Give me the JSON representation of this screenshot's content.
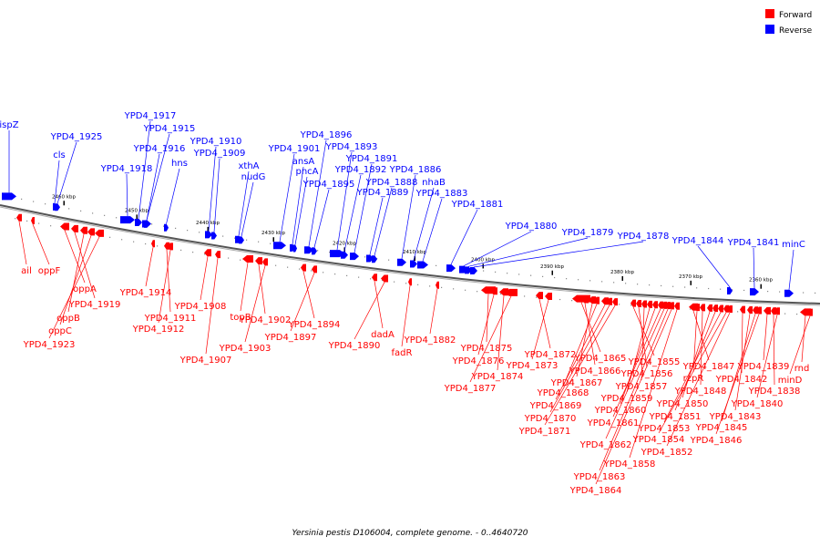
{
  "legend": {
    "forward_label": "Forward",
    "reverse_label": "Reverse",
    "forward_color": "#ff0000",
    "reverse_color": "#0000ff"
  },
  "caption": "Yersinia pestis D106004, complete genome. - 0..4640720",
  "axis_labels": [
    "2460 kbp",
    "2450 kbp",
    "2440 kbp",
    "2430 kbp",
    "2420 kbp",
    "2410 kbp",
    "2400 kbp",
    "2390 kbp",
    "2380 kbp",
    "2370 kbp",
    "2360 kbp"
  ],
  "reverse_genes": [
    "ispZ",
    "YPD4_1925",
    "cls",
    "YPD4_1918",
    "YPD4_1917",
    "YPD4_1915",
    "YPD4_1916",
    "hns",
    "YPD4_1910",
    "YPD4_1909",
    "xthA",
    "nudG",
    "YPD4_1901",
    "ansA",
    "pncA",
    "YPD4_1896",
    "YPD4_1895",
    "YPD4_1893",
    "YPD4_1892",
    "YPD4_1891",
    "YPD4_1889",
    "YPD4_1888",
    "YPD4_1886",
    "nhaB",
    "YPD4_1883",
    "YPD4_1881",
    "YPD4_1880",
    "YPD4_1879",
    "YPD4_1878",
    "YPD4_1844",
    "YPD4_1841",
    "minC"
  ],
  "forward_genes": [
    "ail",
    "oppF",
    "oppA",
    "YPD4_1919",
    "oppB",
    "oppC",
    "YPD4_1923",
    "YPD4_1914",
    "YPD4_1911",
    "YPD4_1912",
    "YPD4_1908",
    "YPD4_1907",
    "topB",
    "YPD4_1902",
    "YPD4_1903",
    "YPD4_1894",
    "YPD4_1897",
    "dadA",
    "YPD4_1890",
    "fadR",
    "YPD4_1882",
    "YPD4_1875",
    "YPD4_1876",
    "YPD4_1874",
    "YPD4_1877",
    "YPD4_1872",
    "YPD4_1873",
    "YPD4_1865",
    "YPD4_1866",
    "YPD4_1867",
    "YPD4_1868",
    "YPD4_1869",
    "YPD4_1870",
    "YPD4_1871",
    "YPD4_1855",
    "YPD4_1856",
    "YPD4_1857",
    "YPD4_1859",
    "YPD4_1860",
    "YPD4_1861",
    "YPD4_1862",
    "YPD4_1863",
    "YPD4_1864",
    "YPD4_1858",
    "YPD4_1847",
    "rzpR",
    "YPD4_1848",
    "YPD4_1850",
    "YPD4_1851",
    "YPD4_1853",
    "YPD4_1854",
    "YPD4_1852",
    "YPD4_1842",
    "YPD4_1843",
    "YPD4_1845",
    "YPD4_1846",
    "YPD4_1839",
    "YPD4_1838",
    "YPD4_1840",
    "rnd",
    "minD"
  ]
}
